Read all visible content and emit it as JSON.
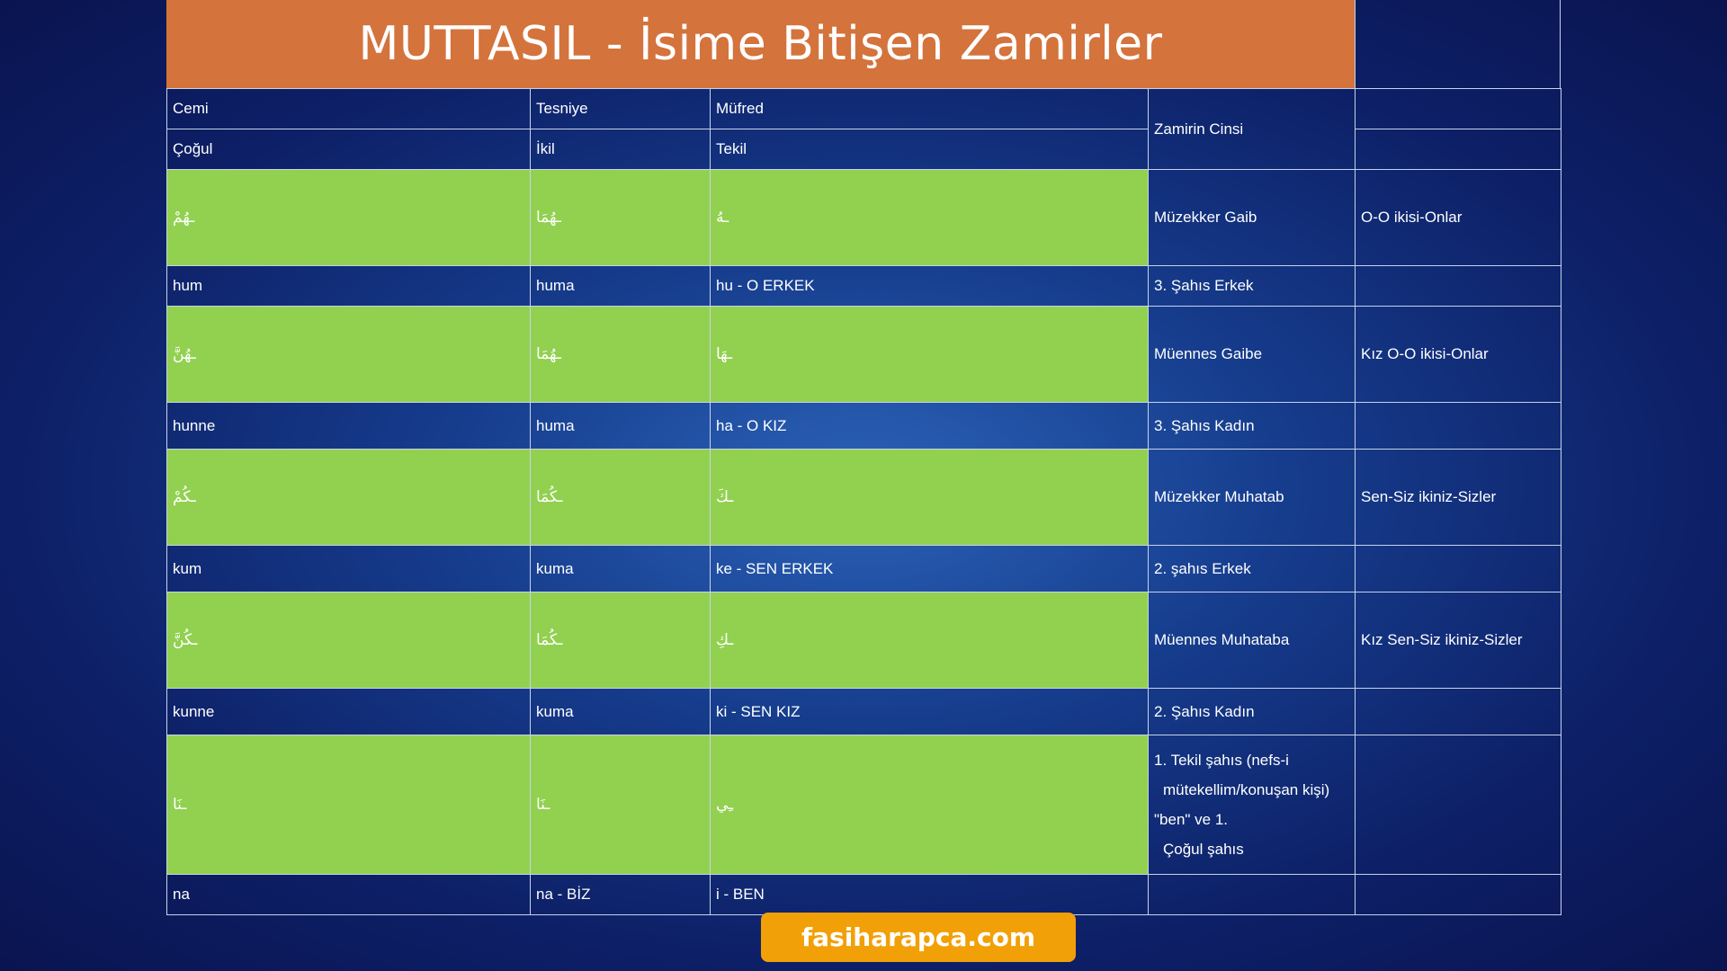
{
  "title": "MUTTASIL - İsime Bitişen Zamirler",
  "headers": {
    "row1": [
      "Cemi",
      "Tesniye",
      "Müfred",
      "Zamirin Cinsi"
    ],
    "row2": [
      "Çoğul",
      "İkil",
      "Tekil"
    ]
  },
  "rows": [
    {
      "arabic": [
        "ـهُمْ",
        "ـهُمَا",
        "ـهُ"
      ],
      "cinsi": "Müzekker Gaib",
      "extra": "O-O ikisi-Onlar",
      "translit": [
        "hum",
        "huma",
        "hu -  O ERKEK"
      ],
      "sahis": "3. Şahıs Erkek"
    },
    {
      "arabic": [
        "ـهُنَّ",
        "ـهُمَا",
        "ـهَا"
      ],
      "cinsi": "Müennes Gaibe",
      "extra": "Kız O-O ikisi-Onlar",
      "translit": [
        "hunne",
        "huma",
        "ha - O KIZ"
      ],
      "sahis": "3. Şahıs Kadın"
    },
    {
      "arabic": [
        "ـكُمْ",
        "ـكُمَا",
        "ـكَ"
      ],
      "cinsi": "Müzekker Muhatab",
      "extra": "Sen-Siz ikiniz-Sizler",
      "translit": [
        "kum",
        "kuma",
        "ke - SEN ERKEK"
      ],
      "sahis": "2. şahıs Erkek"
    },
    {
      "arabic": [
        "ـكُنَّ",
        "ـكُمَا",
        "ـكِ"
      ],
      "cinsi": "Müennes Muhataba",
      "extra": "Kız Sen-Siz ikiniz-Sizler",
      "translit": [
        "kunne",
        "kuma",
        "ki - SEN KIZ"
      ],
      "sahis": "2. Şahıs Kadın"
    },
    {
      "arabic": [
        "ـنَا",
        "ـنَا",
        "ـِي"
      ],
      "cinsi_lines": [
        "1. Tekil şahıs (nefs-i",
        "mütekellim/konuşan kişi)",
        "\"ben\" ve 1.",
        "Çoğul şahıs"
      ],
      "translit": [
        "na",
        "na - BİZ",
        "i - BEN"
      ]
    }
  ],
  "footer": {
    "site": "fasiharapca.com"
  },
  "colors": {
    "title_bg": "#d4733c",
    "green_cell": "#92d050",
    "badge_bg": "#f2a007"
  }
}
